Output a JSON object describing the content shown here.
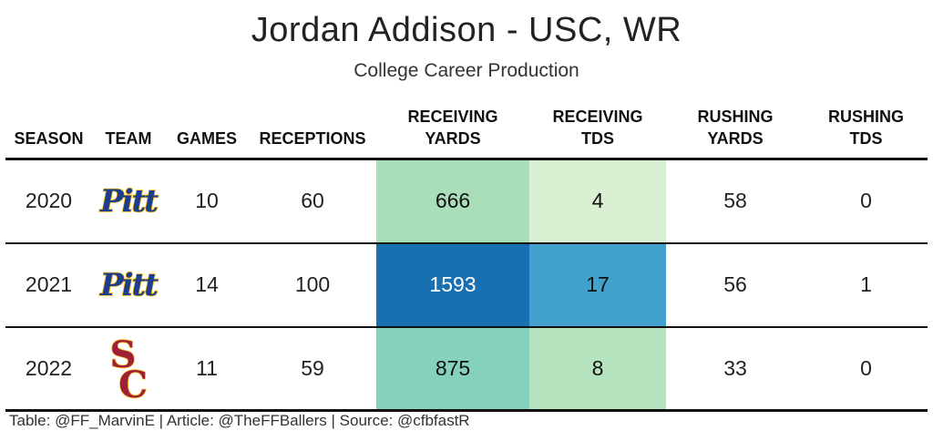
{
  "title": "Jordan Addison - USC, WR",
  "subtitle": "College Career Production",
  "chart_data": {
    "type": "table",
    "columns": [
      {
        "key": "season",
        "label": "SEASON"
      },
      {
        "key": "team",
        "label": "TEAM"
      },
      {
        "key": "games",
        "label": "GAMES"
      },
      {
        "key": "receptions",
        "label": "RECEPTIONS"
      },
      {
        "key": "rec_yds",
        "label": "RECEIVING YARDS"
      },
      {
        "key": "rec_tds",
        "label": "RECEIVING TDS"
      },
      {
        "key": "rush_yds",
        "label": "RUSHING YARDS"
      },
      {
        "key": "rush_tds",
        "label": "RUSHING TDS"
      }
    ],
    "rows": [
      {
        "season": "2020",
        "team": "Pitt",
        "games": "10",
        "receptions": "60",
        "rec_yds": "666",
        "rec_tds": "4",
        "rush_yds": "58",
        "rush_tds": "0",
        "rec_yds_color": "#aadeb8",
        "rec_tds_color": "#d9f0d3",
        "rec_yds_text": "#111111",
        "rec_tds_text": "#111111"
      },
      {
        "season": "2021",
        "team": "Pitt",
        "games": "14",
        "receptions": "100",
        "rec_yds": "1593",
        "rec_tds": "17",
        "rush_yds": "56",
        "rush_tds": "1",
        "rec_yds_color": "#1870b2",
        "rec_tds_color": "#42a2cd",
        "rec_yds_text": "#ffffff",
        "rec_tds_text": "#111111"
      },
      {
        "season": "2022",
        "team": "USC",
        "games": "11",
        "receptions": "59",
        "rec_yds": "875",
        "rec_tds": "8",
        "rush_yds": "33",
        "rush_tds": "0",
        "rec_yds_color": "#86d0be",
        "rec_tds_color": "#b5e3bd",
        "rec_yds_text": "#111111",
        "rec_tds_text": "#111111"
      }
    ]
  },
  "logos": {
    "pitt": {
      "text": "Pitt",
      "fill": "#1c3d8f",
      "outline": "#f2b705"
    },
    "usc": {
      "text": "SC",
      "fill": "#9d2235",
      "outline": "#ffc72c"
    }
  },
  "footer": "Table: @FF_MarvinE | Article: @TheFFBallers | Source: @cfbfastR"
}
